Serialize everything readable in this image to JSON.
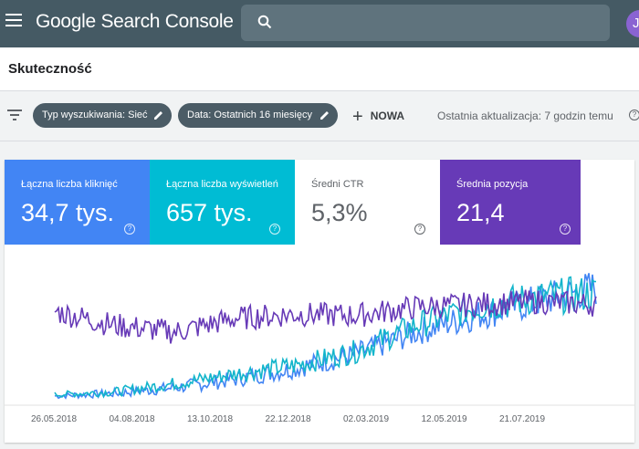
{
  "app": {
    "title": "Google Search Console",
    "avatar_initial": "J"
  },
  "page": {
    "title": "Skuteczność"
  },
  "filters": {
    "chips": [
      "Typ wyszukiwania: Sieć",
      "Data: Ostatnich 16 miesięcy"
    ],
    "new_label": "NOWA",
    "last_update": "Ostatnia aktualizacja: 7 godzin temu",
    "help_glyph": "?"
  },
  "metrics": [
    {
      "label": "Łączna liczba kliknięć",
      "value": "34,7 tys.",
      "active": true,
      "color": "#4285f4"
    },
    {
      "label": "Łączna liczba wyświetleń",
      "value": "657 tys.",
      "active": true,
      "color": "#00bcd4"
    },
    {
      "label": "Średni CTR",
      "value": "5,3%",
      "active": false,
      "color": "#ffffff"
    },
    {
      "label": "Średnia pozycja",
      "value": "21,4",
      "active": true,
      "color": "#673ab7"
    }
  ],
  "chart_data": {
    "type": "line",
    "x_tick_labels": [
      "26.05.2018",
      "04.08.2018",
      "13.10.2018",
      "22.12.2018",
      "02.03.2019",
      "12.05.2019",
      "21.07.2019"
    ],
    "series": [
      {
        "name": "Łączna liczba kliknięć",
        "color": "#4285f4",
        "trend": [
          0.04,
          0.06,
          0.1,
          0.16,
          0.24,
          0.34,
          0.5,
          0.62,
          0.72,
          0.82
        ]
      },
      {
        "name": "Łączna liczba wyświetleń",
        "color": "#12b5cb",
        "trend": [
          0.05,
          0.07,
          0.13,
          0.2,
          0.26,
          0.36,
          0.55,
          0.68,
          0.75,
          0.78
        ]
      },
      {
        "name": "Średnia pozycja",
        "color": "#673ab7",
        "trend": [
          0.65,
          0.55,
          0.5,
          0.6,
          0.63,
          0.62,
          0.68,
          0.7,
          0.72,
          0.7
        ]
      }
    ]
  }
}
